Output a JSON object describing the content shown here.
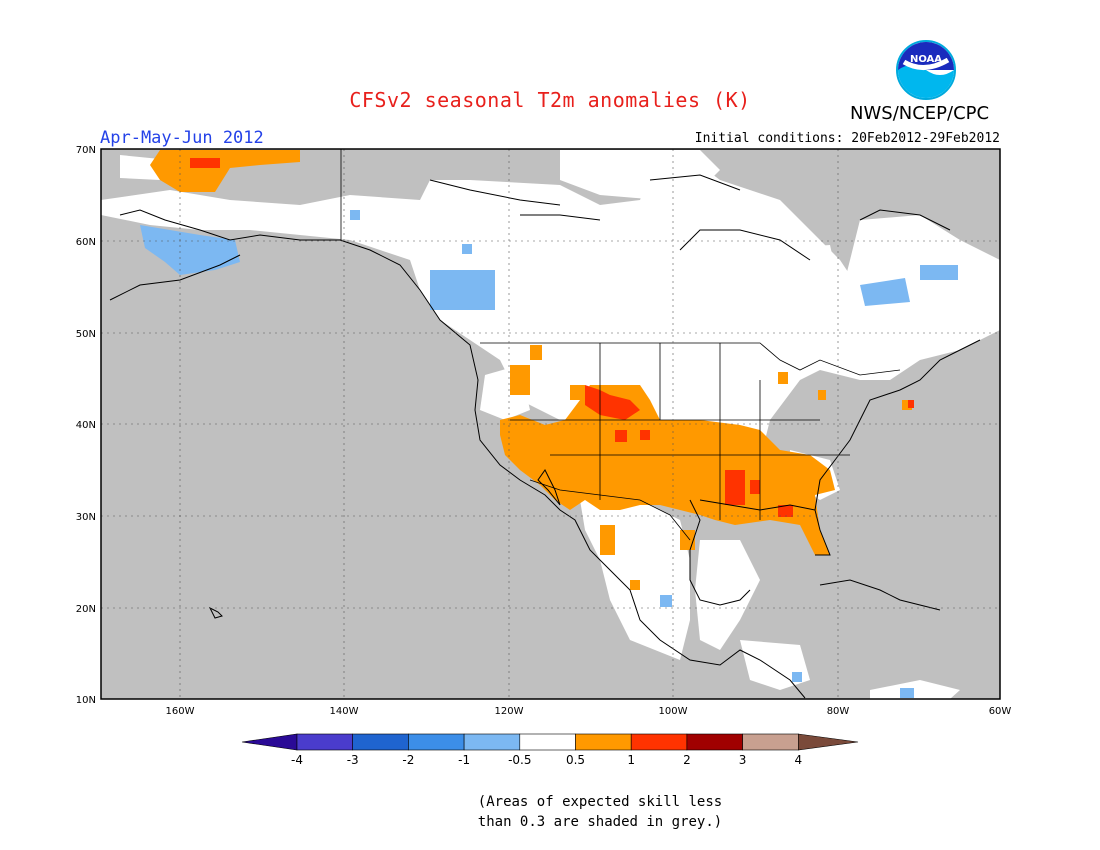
{
  "title": "CFSv2 seasonal T2m anomalies (K)",
  "agency": "NWS/NCEP/CPC",
  "logo_text": "NOAA",
  "period": "Apr-May-Jun 2012",
  "initial_conditions": "Initial conditions: 20Feb2012-29Feb2012",
  "lat_labels": [
    "70N",
    "60N",
    "50N",
    "40N",
    "30N",
    "20N",
    "10N"
  ],
  "lon_labels": [
    "160W",
    "140W",
    "120W",
    "100W",
    "80W",
    "60W"
  ],
  "colorbar": {
    "labels": [
      "-4",
      "-3",
      "-2",
      "-1",
      "-0.5",
      "0.5",
      "1",
      "2",
      "3",
      "4"
    ],
    "colors": [
      "#2a0a96",
      "#4a3ccc",
      "#1f64cf",
      "#3c8ee8",
      "#7cb8f2",
      "#ffffff",
      "#ff9900",
      "#ff3300",
      "#a00000",
      "#c8a090",
      "#7a4a3a"
    ]
  },
  "colors": {
    "grey": "#c0c0c0",
    "warm1": "#ff9900",
    "warm2": "#ff3300",
    "cool1": "#7cb8f2"
  },
  "note": {
    "line1": "(Areas of expected skill less",
    "line2": "than 0.3 are shaded in grey.)"
  }
}
